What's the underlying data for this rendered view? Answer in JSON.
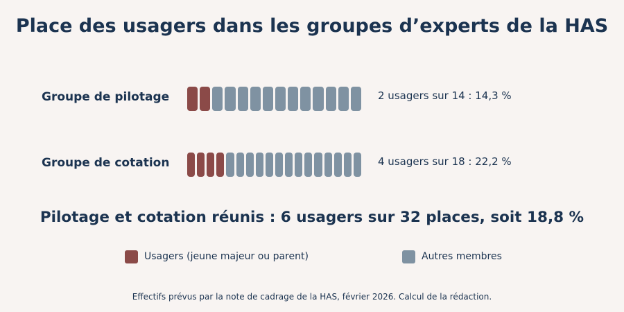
{
  "title": "Place des usagers dans les groupes d’experts de la HAS",
  "chart_data": {
    "type": "waffle",
    "rows": [
      {
        "label": "Groupe de pilotage",
        "usagers": 2,
        "total": 14,
        "value_text": "2 usagers sur 14 : 14,3 %"
      },
      {
        "label": "Groupe de cotation",
        "usagers": 4,
        "total": 18,
        "value_text": "4 usagers sur 18 : 22,2 %"
      }
    ],
    "summary": "Pilotage et cotation réunis : 6 usagers sur 32 places, soit 18,8 %",
    "legend": [
      {
        "label": "Usagers (jeune majeur ou parent)",
        "color": "#8b4a48"
      },
      {
        "label": "Autres membres",
        "color": "#7f92a2"
      }
    ],
    "legend_placement": "bottom"
  },
  "colors": {
    "usagers": "#8b4a48",
    "autres": "#7f92a2",
    "text": "#1b3350",
    "background": "#f8f4f2"
  },
  "source": "Effectifs prévus par la note de cadrage de la HAS, février 2026. Calcul de la rédaction."
}
